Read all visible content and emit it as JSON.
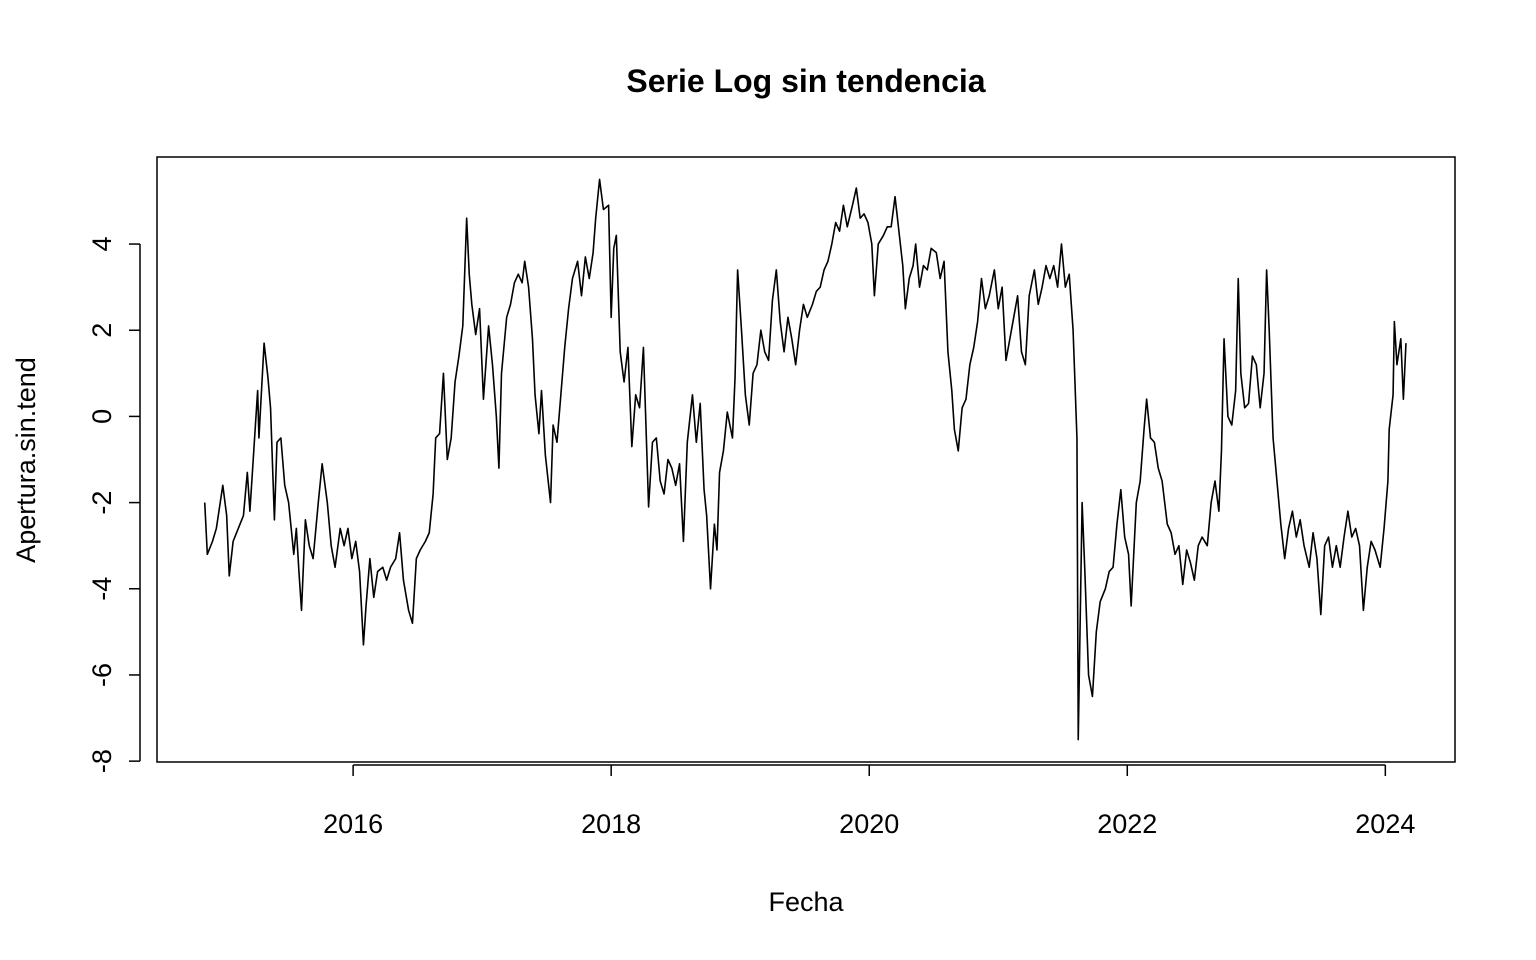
{
  "chart_data": {
    "type": "line",
    "title": "Serie Log sin tendencia",
    "xlabel": "Fecha",
    "ylabel": "Apertura.sin.tend",
    "color": "#000000",
    "xlim": [
      2014.48,
      2024.54
    ],
    "xticks": [
      2016,
      2018,
      2020,
      2022,
      2024
    ],
    "ylim": [
      -8.02,
      6.02
    ],
    "yticks": [
      -8,
      -6,
      -4,
      -2,
      0,
      2,
      4
    ],
    "x": [
      2014.85,
      2014.87,
      2014.91,
      2014.94,
      2014.97,
      2014.99,
      2015.02,
      2015.04,
      2015.07,
      2015.11,
      2015.15,
      2015.18,
      2015.2,
      2015.23,
      2015.26,
      2015.27,
      2015.31,
      2015.34,
      2015.36,
      2015.39,
      2015.41,
      2015.44,
      2015.47,
      2015.5,
      2015.54,
      2015.56,
      2015.58,
      2015.6,
      2015.63,
      2015.66,
      2015.69,
      2015.73,
      2015.76,
      2015.8,
      2015.83,
      2015.86,
      2015.9,
      2015.93,
      2015.96,
      2015.99,
      2016.02,
      2016.05,
      2016.08,
      2016.1,
      2016.13,
      2016.16,
      2016.19,
      2016.23,
      2016.26,
      2016.29,
      2016.33,
      2016.36,
      2016.39,
      2016.43,
      2016.46,
      2016.49,
      2016.52,
      2016.56,
      2016.59,
      2016.62,
      2016.64,
      2016.67,
      2016.7,
      2016.73,
      2016.76,
      2016.79,
      2016.82,
      2016.85,
      2016.88,
      2016.9,
      2016.92,
      2016.95,
      2016.98,
      2017.01,
      2017.05,
      2017.08,
      2017.11,
      2017.13,
      2017.15,
      2017.19,
      2017.22,
      2017.25,
      2017.28,
      2017.31,
      2017.33,
      2017.36,
      2017.39,
      2017.41,
      2017.44,
      2017.46,
      2017.49,
      2017.53,
      2017.55,
      2017.58,
      2017.61,
      2017.64,
      2017.67,
      2017.7,
      2017.74,
      2017.77,
      2017.8,
      2017.83,
      2017.86,
      2017.88,
      2017.91,
      2017.94,
      2017.98,
      2018.0,
      2018.02,
      2018.04,
      2018.07,
      2018.1,
      2018.13,
      2018.16,
      2018.19,
      2018.22,
      2018.25,
      2018.29,
      2018.32,
      2018.35,
      2018.38,
      2018.41,
      2018.44,
      2018.47,
      2018.5,
      2018.53,
      2018.56,
      2018.59,
      2018.63,
      2018.66,
      2018.69,
      2018.72,
      2018.74,
      2018.77,
      2018.8,
      2018.82,
      2018.84,
      2018.87,
      2018.9,
      2018.94,
      2018.96,
      2018.98,
      2019.01,
      2019.04,
      2019.07,
      2019.1,
      2019.13,
      2019.16,
      2019.19,
      2019.22,
      2019.25,
      2019.28,
      2019.31,
      2019.34,
      2019.37,
      2019.4,
      2019.43,
      2019.46,
      2019.49,
      2019.52,
      2019.56,
      2019.59,
      2019.62,
      2019.65,
      2019.68,
      2019.71,
      2019.74,
      2019.77,
      2019.8,
      2019.83,
      2019.87,
      2019.9,
      2019.93,
      2019.96,
      2019.99,
      2020.02,
      2020.04,
      2020.07,
      2020.11,
      2020.14,
      2020.17,
      2020.2,
      2020.23,
      2020.26,
      2020.28,
      2020.31,
      2020.34,
      2020.36,
      2020.39,
      2020.42,
      2020.45,
      2020.48,
      2020.52,
      2020.55,
      2020.58,
      2020.61,
      2020.64,
      2020.66,
      2020.69,
      2020.72,
      2020.75,
      2020.78,
      2020.81,
      2020.84,
      2020.87,
      2020.9,
      2020.93,
      2020.97,
      2021.0,
      2021.03,
      2021.06,
      2021.09,
      2021.12,
      2021.15,
      2021.18,
      2021.21,
      2021.24,
      2021.28,
      2021.31,
      2021.34,
      2021.37,
      2021.4,
      2021.43,
      2021.46,
      2021.49,
      2021.52,
      2021.55,
      2021.58,
      2021.61,
      2021.62,
      2021.65,
      2021.67,
      2021.7,
      2021.73,
      2021.76,
      2021.79,
      2021.83,
      2021.86,
      2021.89,
      2021.92,
      2021.95,
      2021.98,
      2022.01,
      2022.03,
      2022.07,
      2022.1,
      2022.13,
      2022.15,
      2022.18,
      2022.21,
      2022.24,
      2022.27,
      2022.31,
      2022.34,
      2022.37,
      2022.4,
      2022.43,
      2022.46,
      2022.49,
      2022.52,
      2022.55,
      2022.58,
      2022.62,
      2022.65,
      2022.68,
      2022.71,
      2022.73,
      2022.75,
      2022.78,
      2022.81,
      2022.84,
      2022.86,
      2022.88,
      2022.91,
      2022.94,
      2022.97,
      2023.0,
      2023.03,
      2023.06,
      2023.08,
      2023.1,
      2023.13,
      2023.16,
      2023.19,
      2023.22,
      2023.25,
      2023.28,
      2023.31,
      2023.34,
      2023.37,
      2023.41,
      2023.44,
      2023.47,
      2023.5,
      2023.53,
      2023.56,
      2023.59,
      2023.62,
      2023.65,
      2023.68,
      2023.71,
      2023.74,
      2023.77,
      2023.8,
      2023.83,
      2023.86,
      2023.89,
      2023.92,
      2023.96,
      2023.99,
      2024.02,
      2024.03,
      2024.06,
      2024.07,
      2024.09,
      2024.12,
      2024.14,
      2024.16
    ],
    "values": [
      -2.0,
      -3.2,
      -2.9,
      -2.6,
      -2.0,
      -1.6,
      -2.3,
      -3.7,
      -2.9,
      -2.6,
      -2.3,
      -1.3,
      -2.2,
      -0.8,
      0.6,
      -0.5,
      1.7,
      0.9,
      0.2,
      -2.4,
      -0.6,
      -0.5,
      -1.6,
      -2.0,
      -3.2,
      -2.6,
      -3.6,
      -4.5,
      -2.4,
      -3.0,
      -3.3,
      -2.0,
      -1.1,
      -2.0,
      -3.0,
      -3.5,
      -2.6,
      -3.0,
      -2.6,
      -3.3,
      -2.9,
      -3.6,
      -5.3,
      -4.4,
      -3.3,
      -4.2,
      -3.6,
      -3.5,
      -3.8,
      -3.5,
      -3.3,
      -2.7,
      -3.8,
      -4.5,
      -4.8,
      -3.3,
      -3.1,
      -2.9,
      -2.7,
      -1.8,
      -0.5,
      -0.4,
      1.0,
      -1.0,
      -0.5,
      0.8,
      1.4,
      2.1,
      4.6,
      3.3,
      2.6,
      1.9,
      2.5,
      0.4,
      2.1,
      1.2,
      0.0,
      -1.2,
      1.0,
      2.3,
      2.6,
      3.1,
      3.3,
      3.1,
      3.6,
      3.0,
      1.8,
      0.5,
      -0.4,
      0.6,
      -0.9,
      -2.0,
      -0.2,
      -0.6,
      0.5,
      1.6,
      2.5,
      3.2,
      3.6,
      2.8,
      3.7,
      3.2,
      3.8,
      4.6,
      5.5,
      4.8,
      4.9,
      2.3,
      3.9,
      4.2,
      1.5,
      0.8,
      1.6,
      -0.7,
      0.5,
      0.2,
      1.6,
      -2.1,
      -0.6,
      -0.5,
      -1.5,
      -1.8,
      -1.0,
      -1.2,
      -1.6,
      -1.1,
      -2.9,
      -0.6,
      0.5,
      -0.6,
      0.3,
      -1.7,
      -2.3,
      -4.0,
      -2.5,
      -3.1,
      -1.3,
      -0.8,
      0.1,
      -0.5,
      0.9,
      3.4,
      2.0,
      0.5,
      -0.2,
      1.0,
      1.2,
      2.0,
      1.5,
      1.3,
      2.7,
      3.4,
      2.2,
      1.5,
      2.3,
      1.8,
      1.2,
      2.0,
      2.6,
      2.3,
      2.6,
      2.9,
      3.0,
      3.4,
      3.6,
      4.0,
      4.5,
      4.3,
      4.9,
      4.4,
      4.9,
      5.3,
      4.6,
      4.7,
      4.5,
      4.0,
      2.8,
      4.0,
      4.2,
      4.4,
      4.4,
      5.1,
      4.3,
      3.5,
      2.5,
      3.2,
      3.5,
      4.0,
      3.0,
      3.5,
      3.4,
      3.9,
      3.8,
      3.2,
      3.6,
      1.5,
      0.6,
      -0.3,
      -0.8,
      0.2,
      0.4,
      1.2,
      1.6,
      2.2,
      3.2,
      2.5,
      2.8,
      3.4,
      2.5,
      3.0,
      1.3,
      1.8,
      2.3,
      2.8,
      1.5,
      1.2,
      2.8,
      3.4,
      2.6,
      3.0,
      3.5,
      3.2,
      3.5,
      3.0,
      4.0,
      3.0,
      3.3,
      2.0,
      -0.5,
      -7.5,
      -2.0,
      -3.5,
      -6.0,
      -6.5,
      -5.0,
      -4.3,
      -4.0,
      -3.6,
      -3.5,
      -2.5,
      -1.7,
      -2.8,
      -3.2,
      -4.4,
      -2.0,
      -1.5,
      -0.3,
      0.4,
      -0.5,
      -0.6,
      -1.2,
      -1.5,
      -2.5,
      -2.7,
      -3.2,
      -3.0,
      -3.9,
      -3.1,
      -3.4,
      -3.8,
      -3.0,
      -2.8,
      -3.0,
      -2.0,
      -1.5,
      -2.2,
      -0.8,
      1.8,
      0.0,
      -0.2,
      0.6,
      3.2,
      1.0,
      0.2,
      0.3,
      1.4,
      1.2,
      0.2,
      1.0,
      3.4,
      2.0,
      -0.5,
      -1.5,
      -2.5,
      -3.3,
      -2.6,
      -2.2,
      -2.8,
      -2.4,
      -3.0,
      -3.5,
      -2.7,
      -3.3,
      -4.6,
      -3.0,
      -2.8,
      -3.5,
      -3.0,
      -3.5,
      -2.8,
      -2.2,
      -2.8,
      -2.6,
      -3.0,
      -4.5,
      -3.5,
      -2.9,
      -3.1,
      -3.5,
      -2.6,
      -1.5,
      -0.3,
      0.5,
      2.2,
      1.2,
      1.8,
      0.4,
      1.7
    ]
  }
}
